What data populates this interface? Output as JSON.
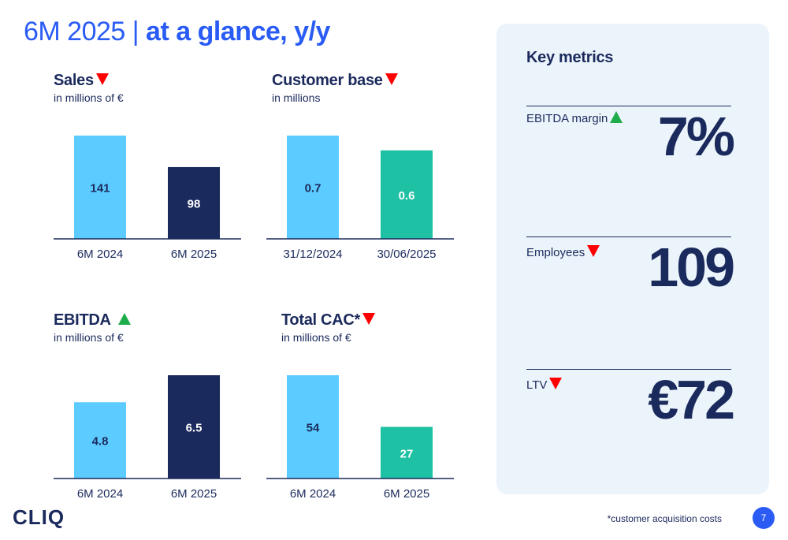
{
  "page": {
    "title_light": "6M 2025 |",
    "title_bold": "at a glance, y/y",
    "logo": "CLIQ",
    "footnote": "*customer acquisition costs",
    "page_number": "7"
  },
  "colors": {
    "light_blue": "#5ccbff",
    "navy": "#1b2a5c",
    "teal": "#1ec1a4",
    "accent_blue": "#2a5cf5",
    "down_arrow": "#ff0000",
    "up_arrow": "#1fad4b"
  },
  "chart_data": [
    {
      "type": "bar",
      "title": "Sales",
      "subtitle": "in millions of €",
      "trend": "down",
      "categories": [
        "6M 2024",
        "6M 2025"
      ],
      "values": [
        141,
        98
      ],
      "value_labels": [
        "141",
        "98"
      ],
      "bar_colors": [
        "#5ccbff",
        "#1b2a5c"
      ],
      "label_colors": [
        "#1b2a5c",
        "#ffffff"
      ]
    },
    {
      "type": "bar",
      "title": "Customer base",
      "subtitle": "in millions",
      "trend": "down",
      "categories": [
        "31/12/2024",
        "30/06/2025"
      ],
      "values": [
        0.7,
        0.6
      ],
      "value_labels": [
        "0.7",
        "0.6"
      ],
      "bar_colors": [
        "#5ccbff",
        "#1ec1a4"
      ],
      "label_colors": [
        "#1b2a5c",
        "#ffffff"
      ]
    },
    {
      "type": "bar",
      "title": "EBITDA",
      "subtitle": "in millions of €",
      "trend": "up",
      "categories": [
        "6M 2024",
        "6M 2025"
      ],
      "values": [
        4.8,
        6.5
      ],
      "value_labels": [
        "4.8",
        "6.5"
      ],
      "bar_colors": [
        "#5ccbff",
        "#1b2a5c"
      ],
      "label_colors": [
        "#1b2a5c",
        "#ffffff"
      ]
    },
    {
      "type": "bar",
      "title": "Total CAC*",
      "subtitle": "in millions of €",
      "trend": "down",
      "categories": [
        "6M 2024",
        "6M 2025"
      ],
      "values": [
        54,
        27
      ],
      "value_labels": [
        "54",
        "27"
      ],
      "bar_colors": [
        "#5ccbff",
        "#1ec1a4"
      ],
      "label_colors": [
        "#1b2a5c",
        "#ffffff"
      ]
    }
  ],
  "key_metrics": {
    "title": "Key metrics",
    "items": [
      {
        "label": "EBITDA margin",
        "trend": "up",
        "value": "7%"
      },
      {
        "label": "Employees",
        "trend": "down",
        "value": "109"
      },
      {
        "label": "LTV",
        "trend": "down",
        "value": "€72"
      }
    ]
  }
}
